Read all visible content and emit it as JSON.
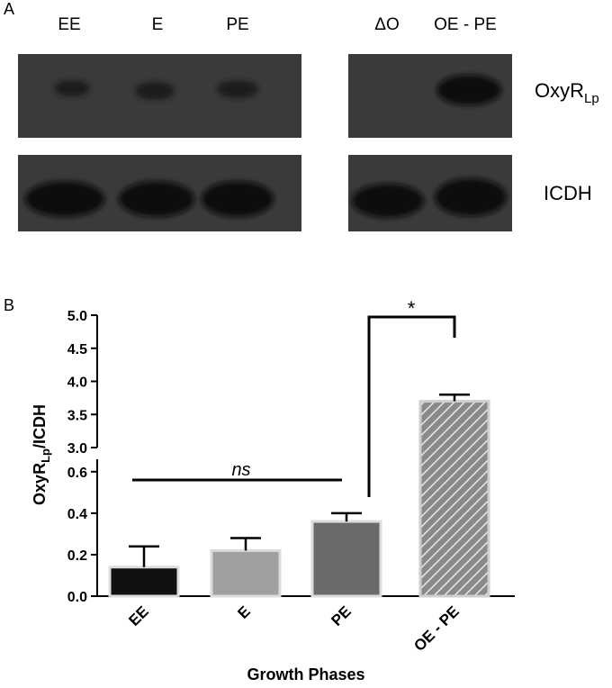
{
  "panel_a": {
    "label": "A",
    "lanes_left": [
      "EE",
      "E",
      "PE"
    ],
    "lanes_right": [
      "ΔO",
      "OE - PE"
    ],
    "rows": [
      {
        "label": "OxyR",
        "subscript": "Lp"
      },
      {
        "label": "ICDH"
      }
    ]
  },
  "chart_data": {
    "type": "bar",
    "panel_label": "B",
    "y_label": {
      "main": "OxyR",
      "subscript": "Lp",
      "rest": "/ICDH"
    },
    "x_label": "Growth Phases",
    "categories": [
      "EE",
      "E",
      "PE",
      "OE - PE"
    ],
    "values": [
      0.14,
      0.22,
      0.36,
      3.7
    ],
    "errors": [
      0.1,
      0.06,
      0.04,
      0.1
    ],
    "colors": [
      "#111111",
      "#a0a0a0",
      "#6a6a6a",
      "#8a8a8a"
    ],
    "ylim": [
      0,
      5
    ],
    "axis_break": [
      0.66,
      3
    ],
    "yticks": [
      {
        "value": 0,
        "label": "0.0"
      },
      0.2,
      0.4,
      0.6,
      {
        "value": 3,
        "label": "3.0"
      },
      3.5,
      {
        "value": 4,
        "label": "4.0"
      },
      4.5,
      {
        "value": 5,
        "label": "5.0"
      }
    ],
    "annotations": [
      "ns",
      "*"
    ]
  }
}
